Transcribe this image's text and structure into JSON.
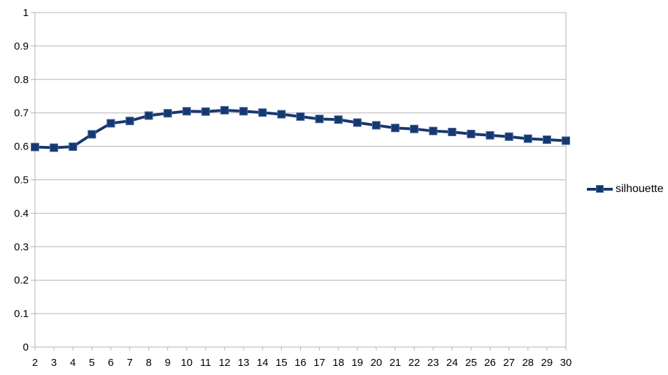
{
  "chart_data": {
    "type": "line",
    "title": "",
    "xlabel": "",
    "ylabel": "",
    "x": [
      2,
      3,
      4,
      5,
      6,
      7,
      8,
      9,
      10,
      11,
      12,
      13,
      14,
      15,
      16,
      17,
      18,
      19,
      20,
      21,
      22,
      23,
      24,
      25,
      26,
      27,
      28,
      29,
      30
    ],
    "series": [
      {
        "name": "silhouette",
        "marker": "square",
        "values": [
          0.598,
          0.596,
          0.599,
          0.636,
          0.669,
          0.676,
          0.692,
          0.699,
          0.705,
          0.704,
          0.708,
          0.705,
          0.701,
          0.696,
          0.689,
          0.682,
          0.68,
          0.671,
          0.663,
          0.655,
          0.652,
          0.646,
          0.643,
          0.637,
          0.633,
          0.629,
          0.623,
          0.62,
          0.617
        ]
      }
    ],
    "x_tick_labels": [
      "2",
      "3",
      "4",
      "5",
      "6",
      "7",
      "8",
      "9",
      "10",
      "11",
      "12",
      "13",
      "14",
      "15",
      "16",
      "17",
      "18",
      "19",
      "20",
      "21",
      "22",
      "23",
      "24",
      "25",
      "26",
      "27",
      "28",
      "29",
      "30"
    ],
    "y_tick_values": [
      0,
      0.1,
      0.2,
      0.3,
      0.4,
      0.5,
      0.6,
      0.7,
      0.8,
      0.9,
      1
    ],
    "y_tick_labels": [
      "0",
      "0.1",
      "0.2",
      "0.3",
      "0.4",
      "0.5",
      "0.6",
      "0.7",
      "0.8",
      "0.9",
      "1"
    ],
    "xlim": [
      2,
      30
    ],
    "ylim": [
      0,
      1
    ],
    "grid": "horizontal-major",
    "legend_position": "right-middle"
  },
  "colors": {
    "series": "#17386e",
    "marker_edge": "#46689f",
    "grid": "#b3b3b3",
    "axis_text": "#000000",
    "background": "#ffffff"
  }
}
